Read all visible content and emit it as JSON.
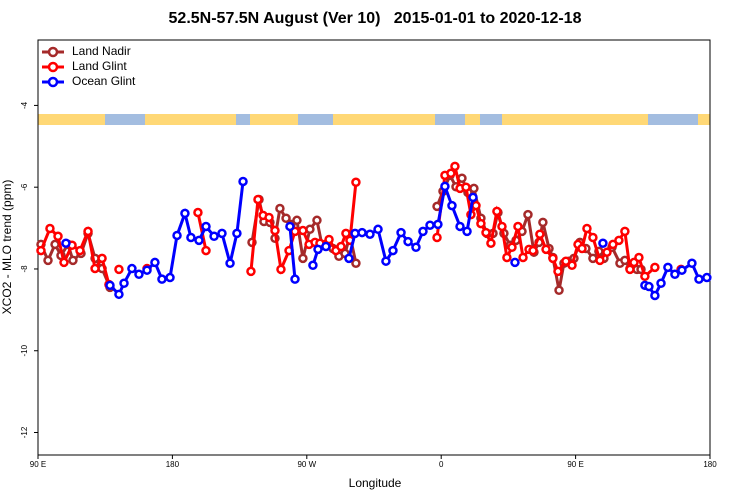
{
  "chart_data": {
    "type": "line",
    "title": "52.5N-57.5N August (Ver 10)   2015-01-01 to 2020-12-18",
    "xlabel": "Longitude",
    "ylabel": "XCO2 - MLO trend (ppm)",
    "xlim": [
      90,
      540
    ],
    "ylim": [
      -12.55,
      -2.4
    ],
    "xticks": [
      {
        "value": 90,
        "label": "90 E"
      },
      180,
      {
        "value": 270,
        "label": "90 W"
      },
      {
        "value": 360,
        "label": "0"
      },
      {
        "value": 450,
        "label": "90 E"
      },
      {
        "value": 540,
        "label": "180"
      }
    ],
    "yticks": [
      -4,
      -6,
      -8,
      -10,
      -12
    ],
    "legend": "upper left",
    "series": [
      {
        "name": "Land Nadir",
        "color": "#a52a2a",
        "x": [
          92.0,
          96.7,
          101.4,
          105.4,
          110.1,
          113.4,
          118.8,
          123.5,
          128.2,
          132.9,
          138.2,
          190,
          233.3,
          238.0,
          241.3,
          245.3,
          248.7,
          252.0,
          256.1,
          259.4,
          263.4,
          267.4,
          272.1,
          276.8,
          280.2,
          284.2,
          287.5,
          291.5,
          295.6,
          298.9,
          302.9,
          330,
          357.2,
          361.2,
          365.9,
          369.9,
          373.9,
          377.9,
          381.9,
          386.6,
          390.6,
          394.7,
          398.0,
          402.0,
          406.1,
          410.1,
          414.1,
          418.1,
          422.1,
          425.5,
          428.1,
          432.2,
          434.8,
          438.9,
          442.2,
          445.6,
          448.9,
          452.9,
          456.9,
          461.6,
          465.6,
          469.0,
          474.4,
          479.7,
          483.0,
          486.4,
          491.1,
          493.8
        ],
        "values": [
          -7.4,
          -7.79,
          -7.4,
          -7.67,
          -7.4,
          -7.79,
          -7.62,
          -7.13,
          -7.74,
          -7.99,
          -8.45,
          null,
          -7.35,
          -6.3,
          -6.84,
          -6.86,
          -7.25,
          -6.52,
          -6.76,
          -6.91,
          -6.81,
          -7.74,
          -7.03,
          -6.81,
          -7.42,
          -7.37,
          -7.5,
          -7.69,
          -7.62,
          -7.18,
          -7.86,
          null,
          -6.47,
          -6.1,
          -5.71,
          -5.99,
          -5.78,
          -6.13,
          -6.03,
          -6.76,
          -7.13,
          -7.13,
          -6.62,
          -7.13,
          -7.42,
          -7.3,
          -7.08,
          -6.67,
          -7.59,
          -7.35,
          -6.86,
          -7.5,
          -7.72,
          -8.52,
          -7.86,
          -7.81,
          -7.74,
          -7.35,
          -7.5,
          -7.74,
          -7.57,
          -7.74,
          -7.47,
          -7.86,
          -7.79,
          -7.99,
          -8.01,
          -8.01
        ]
      },
      {
        "name": "Land Glint",
        "color": "#ff0000",
        "x": [
          92.0,
          98.0,
          103.4,
          107.4,
          112.8,
          118.1,
          123.5,
          128.2,
          132.9,
          137.5,
          141,
          144.2,
          150,
          163.0,
          180,
          197.1,
          202.5,
          220,
          232.6,
          237.3,
          240.7,
          244.7,
          248.7,
          252.7,
          258.1,
          262.1,
          267.4,
          271.5,
          275.5,
          278.8,
          284.9,
          289.5,
          292.9,
          296.2,
          298.9,
          302.9,
          330,
          357.2,
          362.5,
          366.5,
          369.2,
          372.6,
          376.6,
          379.9,
          383.3,
          386.6,
          390.0,
          393.3,
          397.3,
          400.7,
          404.0,
          407.4,
          411.4,
          414.8,
          418.8,
          421.5,
          426.1,
          430.2,
          434.8,
          438.2,
          443.5,
          447.6,
          451.6,
          454.3,
          457.6,
          461.6,
          466.3,
          471.0,
          475.0,
          479.0,
          483.0,
          486.4,
          489.1,
          492.4,
          496.4,
          503.1,
          510,
          520.6
        ],
        "values": [
          -7.55,
          -7.01,
          -7.2,
          -7.84,
          -7.42,
          -7.55,
          -7.08,
          -7.99,
          -7.74,
          -8.38,
          null,
          -8.01,
          null,
          -7.99,
          null,
          -6.62,
          -7.55,
          null,
          -8.06,
          -6.3,
          -6.69,
          -6.74,
          -7.06,
          -8.01,
          -7.55,
          -7.08,
          -7.06,
          -7.4,
          -7.35,
          -7.37,
          -7.28,
          -7.55,
          -7.45,
          -7.13,
          -7.3,
          -5.88,
          null,
          -7.23,
          -5.71,
          -5.66,
          -5.49,
          -6.03,
          -6.0,
          -6.67,
          -6.45,
          -6.89,
          -7.11,
          -7.37,
          -6.59,
          -6.96,
          -7.72,
          -7.47,
          -6.96,
          -7.72,
          -7.52,
          -7.55,
          -7.15,
          -7.52,
          -7.74,
          -8.06,
          -7.81,
          -7.91,
          -7.4,
          -7.5,
          -7.01,
          -7.23,
          -7.79,
          -7.59,
          -7.4,
          -7.3,
          -7.08,
          -8.01,
          -7.84,
          -7.72,
          -8.18,
          -7.96,
          null,
          -8.01
        ]
      },
      {
        "name": "Ocean Glint",
        "color": "#0000ff",
        "x": [
          108.7,
          125,
          138.2,
          144.2,
          147.6,
          152.9,
          157.6,
          163.0,
          168.3,
          173.0,
          178.4,
          183.1,
          188.4,
          192.4,
          197.8,
          202.5,
          207.9,
          213.2,
          218.6,
          223.2,
          227.3,
          245,
          258.7,
          262.1,
          268,
          274.1,
          277.5,
          282.8,
          290,
          298.2,
          302.3,
          307.0,
          312.3,
          317.7,
          323.0,
          327.7,
          333.1,
          337.8,
          343.1,
          347.8,
          352.5,
          357.8,
          362.5,
          367.2,
          372.6,
          377.3,
          381.3,
          395,
          409.4,
          440,
          468.3,
          485,
          496.4,
          499.1,
          503.1,
          507.2,
          511.8,
          516.5,
          521.2,
          527.9,
          532.6,
          537.9
        ],
        "values": [
          -7.37,
          null,
          -8.4,
          -8.62,
          -8.35,
          -7.99,
          -8.13,
          -8.03,
          -7.84,
          -8.25,
          -8.21,
          -7.18,
          -6.64,
          -7.23,
          -7.3,
          -6.96,
          -7.2,
          -7.13,
          -7.86,
          -7.13,
          -5.86,
          null,
          -6.96,
          -8.25,
          null,
          -7.91,
          -7.52,
          -7.45,
          null,
          -7.74,
          -7.13,
          -7.11,
          -7.15,
          -7.03,
          -7.81,
          -7.55,
          -7.11,
          -7.33,
          -7.47,
          -7.08,
          -6.93,
          -6.91,
          -5.98,
          -6.45,
          -6.96,
          -7.08,
          -6.25,
          null,
          -7.84,
          null,
          -7.37,
          null,
          -8.4,
          -8.43,
          -8.65,
          -8.35,
          -7.96,
          -8.13,
          -8.03,
          -7.86,
          -8.25,
          -8.21
        ]
      }
    ]
  }
}
